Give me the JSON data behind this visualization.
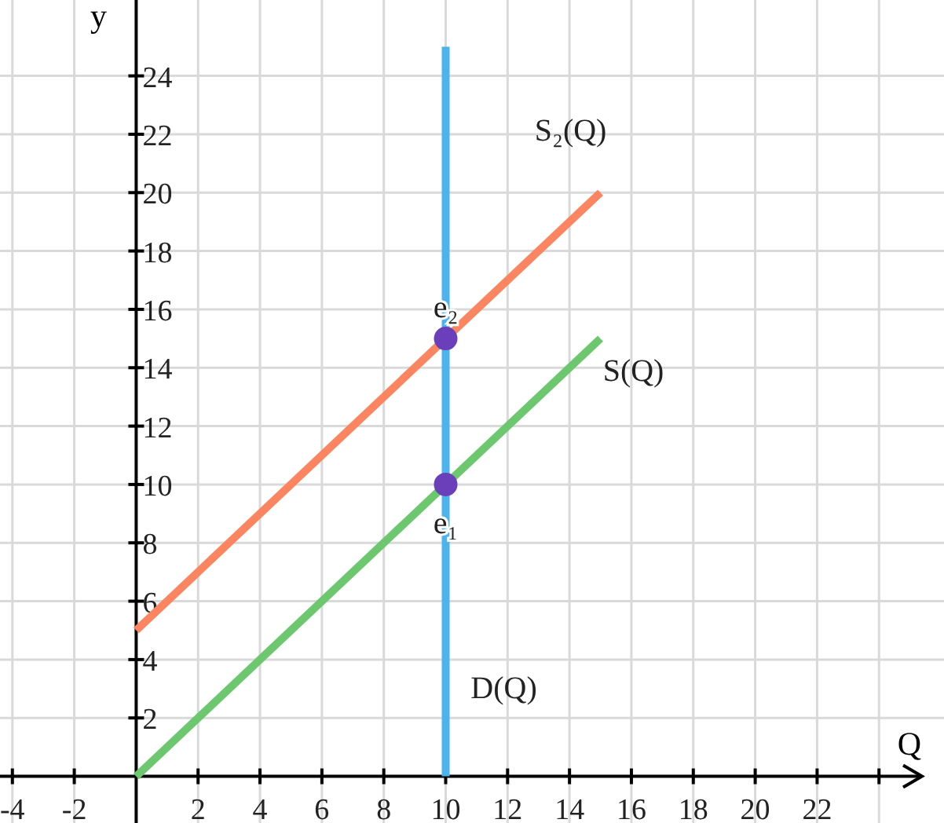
{
  "chart_data": {
    "type": "line",
    "xlabel": "Q",
    "ylabel": "y",
    "xlim": [
      -4.4,
      26.1
    ],
    "ylim": [
      -1.6,
      26.6
    ],
    "xticks": [
      -4,
      -2,
      2,
      4,
      6,
      8,
      10,
      12,
      14,
      16,
      18,
      20,
      22,
      {
        "value": 24,
        "label": null
      }
    ],
    "yticks": [
      2,
      4,
      6,
      8,
      10,
      12,
      14,
      16,
      18,
      20,
      22,
      24
    ],
    "grid": true,
    "marker": "none",
    "line_style": "solid",
    "series": [
      {
        "name": "S₂(Q)",
        "color": "#fa8560",
        "x": [
          0,
          15
        ],
        "values": [
          5,
          20
        ]
      },
      {
        "name": "S(Q)",
        "color": "#6cc76e",
        "x": [
          0,
          15
        ],
        "values": [
          0,
          15
        ]
      },
      {
        "name": "D(Q)",
        "color": "#4db3ed",
        "x": [
          10,
          10
        ],
        "values": [
          0,
          25
        ]
      },
      {
        "type": "scatter",
        "marker": "circle",
        "color": "#6b3fba",
        "x": [
          10,
          10
        ],
        "values": [
          10,
          15
        ]
      }
    ],
    "annotations": [
      {
        "text": "e₂",
        "x": 10,
        "y": 16.1
      },
      {
        "text": "e₁",
        "x": 10,
        "y": 8.7
      }
    ]
  }
}
